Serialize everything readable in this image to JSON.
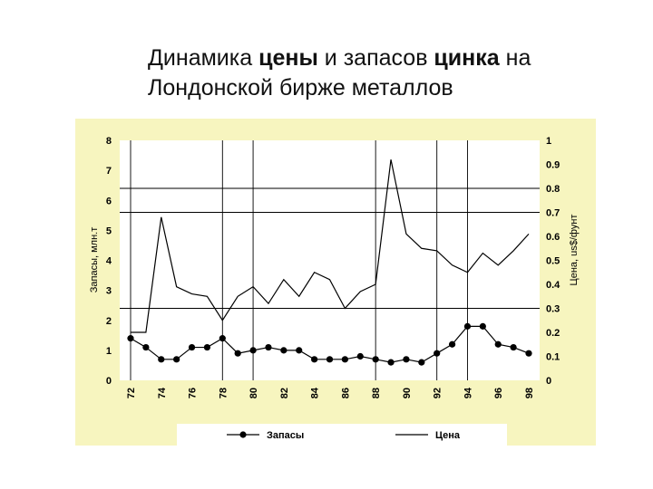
{
  "slide": {
    "title_line1": {
      "parts": [
        {
          "text": "Динамика ",
          "bold": false
        },
        {
          "text": "цены",
          "bold": true
        },
        {
          "text": " и запасов ",
          "bold": false
        },
        {
          "text": "цинка",
          "bold": true
        },
        {
          "text": " на",
          "bold": false
        }
      ]
    },
    "title_line2": "Лондонской бирже металлов"
  },
  "colors": {
    "panel_background": "#f7f5bf",
    "plot_background": "#ffffff",
    "line": "#000000"
  },
  "chart_data": {
    "type": "line",
    "x_ticks": [
      "72",
      "74",
      "76",
      "78",
      "80",
      "82",
      "84",
      "86",
      "88",
      "90",
      "92",
      "94",
      "96",
      "98"
    ],
    "xlim": [
      72,
      98
    ],
    "y_left": {
      "label": "Запасы, млн.т",
      "ticks": [
        "0",
        "1",
        "2",
        "3",
        "4",
        "5",
        "6",
        "7",
        "8"
      ],
      "lim": [
        0,
        8
      ]
    },
    "y_right": {
      "label": "Цена, us$/фунт",
      "ticks": [
        "0",
        "0.1",
        "0.2",
        "0.3",
        "0.4",
        "0.5",
        "0.6",
        "0.7",
        "0.8",
        "0.9",
        "1"
      ],
      "lim": [
        0,
        1
      ]
    },
    "grid": "sparse",
    "legend_position": "bottom",
    "series": [
      {
        "name": "Запасы",
        "axis": "left",
        "marker": "circle",
        "x": [
          72,
          73,
          74,
          75,
          76,
          77,
          78,
          79,
          80,
          81,
          82,
          83,
          84,
          85,
          86,
          87,
          88,
          89,
          90,
          91,
          92,
          93,
          94,
          95,
          96,
          97,
          98
        ],
        "y": [
          1.4,
          1.1,
          0.7,
          0.7,
          1.1,
          1.1,
          1.4,
          0.9,
          1.0,
          1.1,
          1.0,
          1.0,
          0.7,
          0.7,
          0.7,
          0.8,
          0.7,
          0.6,
          0.7,
          0.6,
          0.9,
          1.2,
          1.8,
          1.8,
          1.2,
          1.1,
          0.9
        ]
      },
      {
        "name": "Цена",
        "axis": "right",
        "marker": "none",
        "x": [
          72,
          73,
          74,
          75,
          76,
          77,
          78,
          79,
          80,
          81,
          82,
          83,
          84,
          85,
          86,
          87,
          88,
          89,
          90,
          91,
          92,
          93,
          94,
          95,
          96,
          97,
          98
        ],
        "y": [
          0.2,
          0.2,
          0.68,
          0.39,
          0.36,
          0.35,
          0.25,
          0.35,
          0.39,
          0.32,
          0.42,
          0.35,
          0.45,
          0.42,
          0.3,
          0.37,
          0.4,
          0.92,
          0.61,
          0.55,
          0.54,
          0.48,
          0.45,
          0.53,
          0.48,
          0.54,
          0.61
        ]
      }
    ],
    "grid_lines_x": [
      72,
      78,
      80,
      88,
      92,
      94
    ],
    "grid_lines_right": [
      0.8,
      0.7,
      0.3
    ],
    "legend": [
      {
        "label": "Запасы",
        "marker": "circle"
      },
      {
        "label": "Цена",
        "marker": "none"
      }
    ]
  }
}
